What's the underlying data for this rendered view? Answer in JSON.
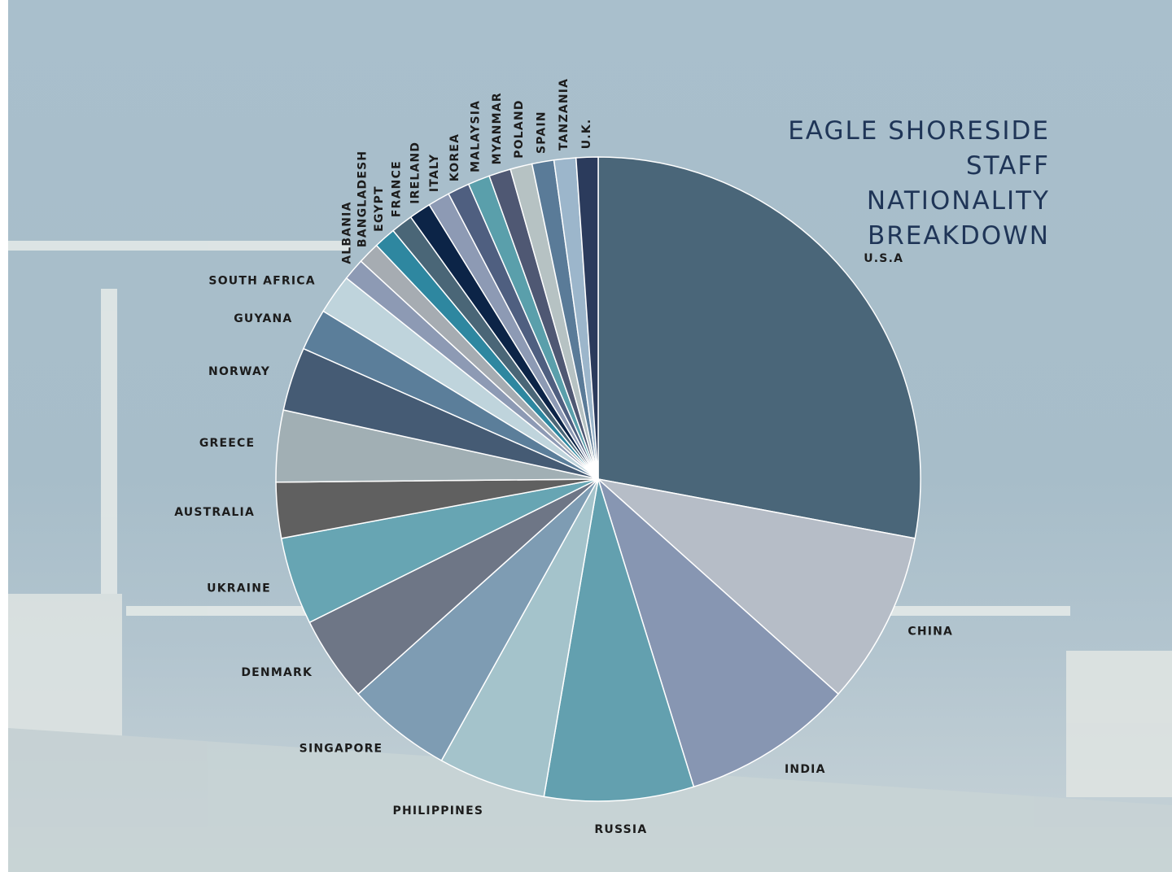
{
  "chart_data": {
    "type": "pie",
    "title": "EAGLE SHORESIDE STAFF NATIONALITY BREAKDOWN",
    "categories": [
      "U.S.A",
      "CHINA",
      "INDIA",
      "RUSSIA",
      "PHILIPPINES",
      "SINGAPORE",
      "DENMARK",
      "UKRAINE",
      "AUSTRALIA",
      "GREECE",
      "NORWAY",
      "GUYANA",
      "SOUTH AFRICA",
      "ALBANIA",
      "BANGLADESH",
      "EGYPT",
      "FRANCE",
      "IRELAND",
      "ITALY",
      "KOREA",
      "MALAYSIA",
      "MYANMAR",
      "POLAND",
      "SPAIN",
      "TANZANIA",
      "U.K."
    ],
    "values": [
      28,
      8.7,
      8.6,
      7.5,
      5.4,
      5.3,
      4.3,
      4.4,
      2.8,
      3.6,
      3.2,
      2.1,
      2,
      1.1,
      1.1,
      1.1,
      1.1,
      1.1,
      1.1,
      1.1,
      1.1,
      1.1,
      1.1,
      1.1,
      1.1,
      1.1
    ],
    "colors": [
      "#4a6679",
      "#b6bdc7",
      "#8796b2",
      "#63a0af",
      "#a4c3cb",
      "#7e9cb3",
      "#6e7686",
      "#67a5b3",
      "#606060",
      "#a1afb4",
      "#455b74",
      "#5b7e9a",
      "#bfd4dc",
      "#8d9ab4",
      "#a6acb2",
      "#2e87a0",
      "#4a6677",
      "#0c2447",
      "#8d9ab4",
      "#4f5f80",
      "#5a9fab",
      "#4f5873",
      "#b6c2c3",
      "#5a7b98",
      "#9cb6cb",
      "#2b3b5c"
    ]
  }
}
